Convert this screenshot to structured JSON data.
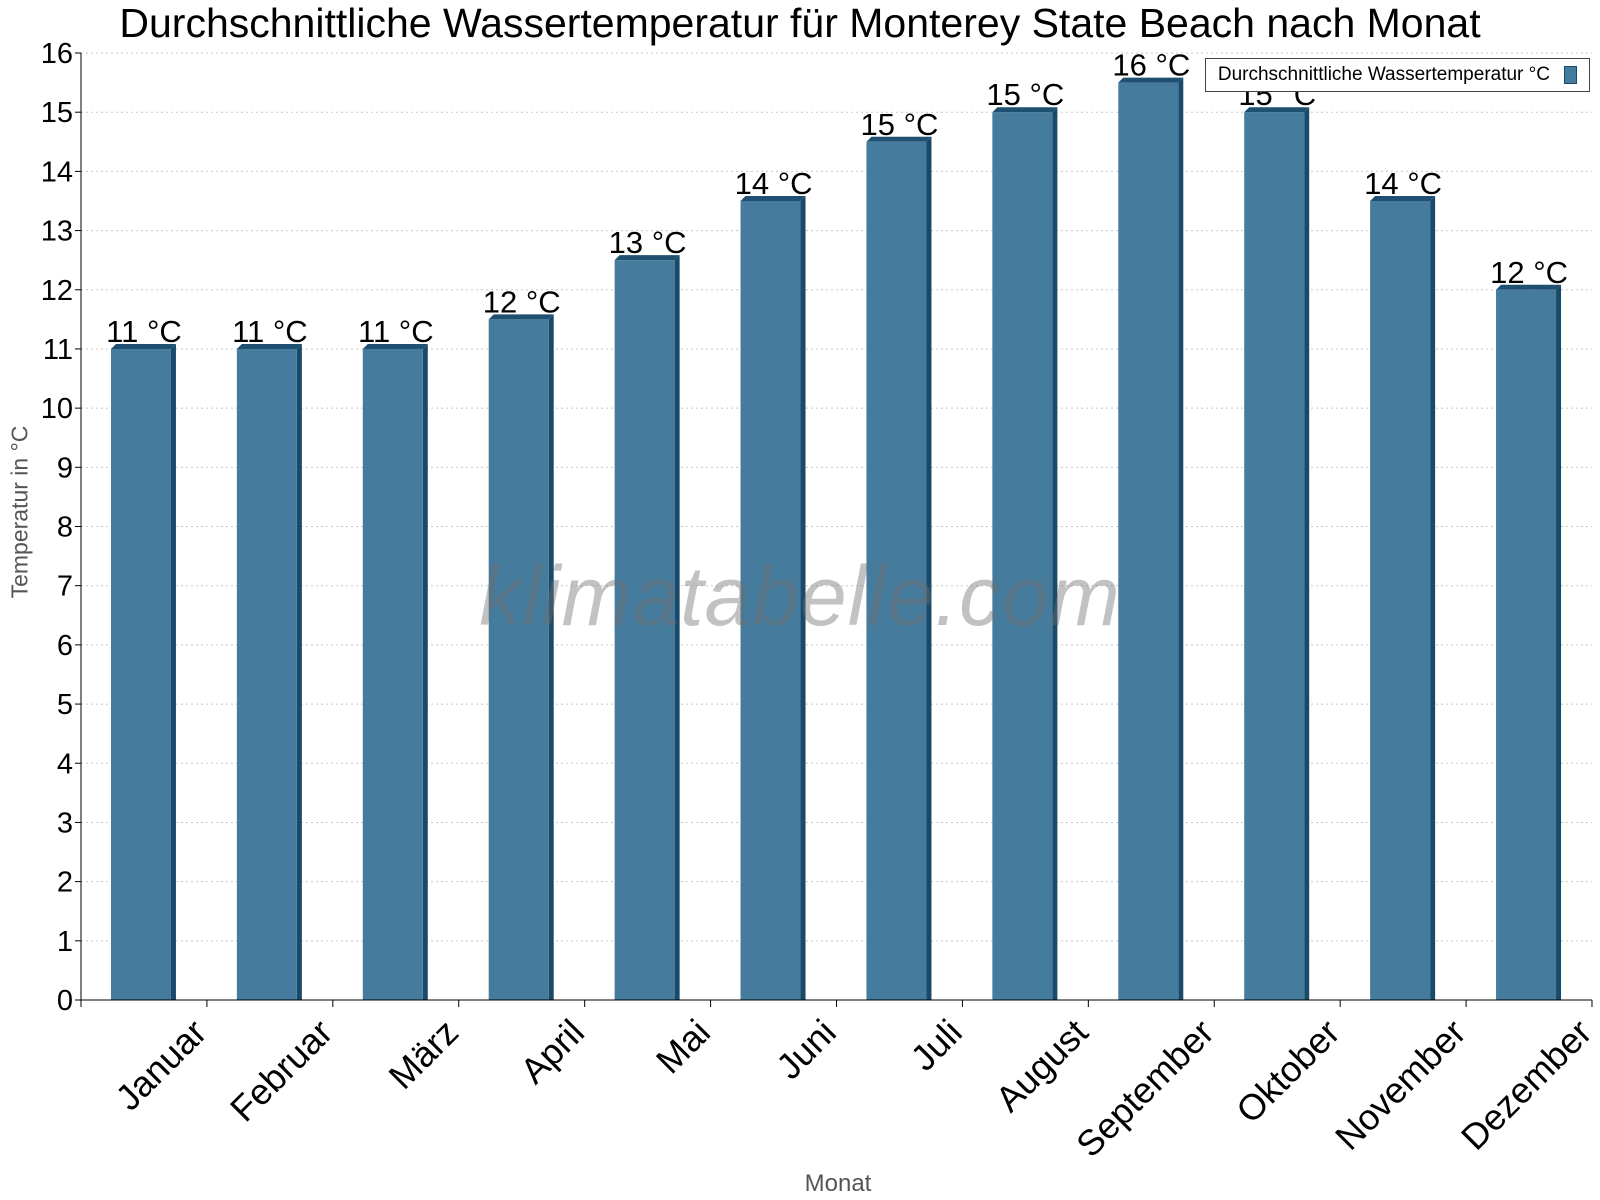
{
  "chart_data": {
    "type": "bar",
    "title": "Durchschnittliche Wassertemperatur für Monterey State Beach nach Monat",
    "xlabel": "Monat",
    "ylabel": "Temperatur in °C",
    "ylim": [
      0,
      16
    ],
    "yticks": [
      "0",
      "1",
      "2",
      "3",
      "4",
      "5",
      "6",
      "7",
      "8",
      "9",
      "10",
      "11",
      "12",
      "13",
      "14",
      "15",
      "16"
    ],
    "grid": true,
    "legend_position": "top-right",
    "categories": [
      "Januar",
      "Februar",
      "März",
      "April",
      "Mai",
      "Juni",
      "Juli",
      "August",
      "September",
      "Oktober",
      "November",
      "Dezember"
    ],
    "series": [
      {
        "name": "Durchschnittliche Wassertemperatur °C",
        "color": "#457b9d",
        "values": [
          11,
          11,
          11,
          11.5,
          12.5,
          13.5,
          14.5,
          15,
          15.5,
          15,
          13.5,
          12
        ],
        "labels": [
          "11 °C",
          "11 °C",
          "11 °C",
          "12 °C",
          "13 °C",
          "14 °C",
          "15 °C",
          "15 °C",
          "16 °C",
          "15 °C",
          "14 °C",
          "12 °C"
        ]
      }
    ]
  },
  "watermark": "klimatabelle.com"
}
